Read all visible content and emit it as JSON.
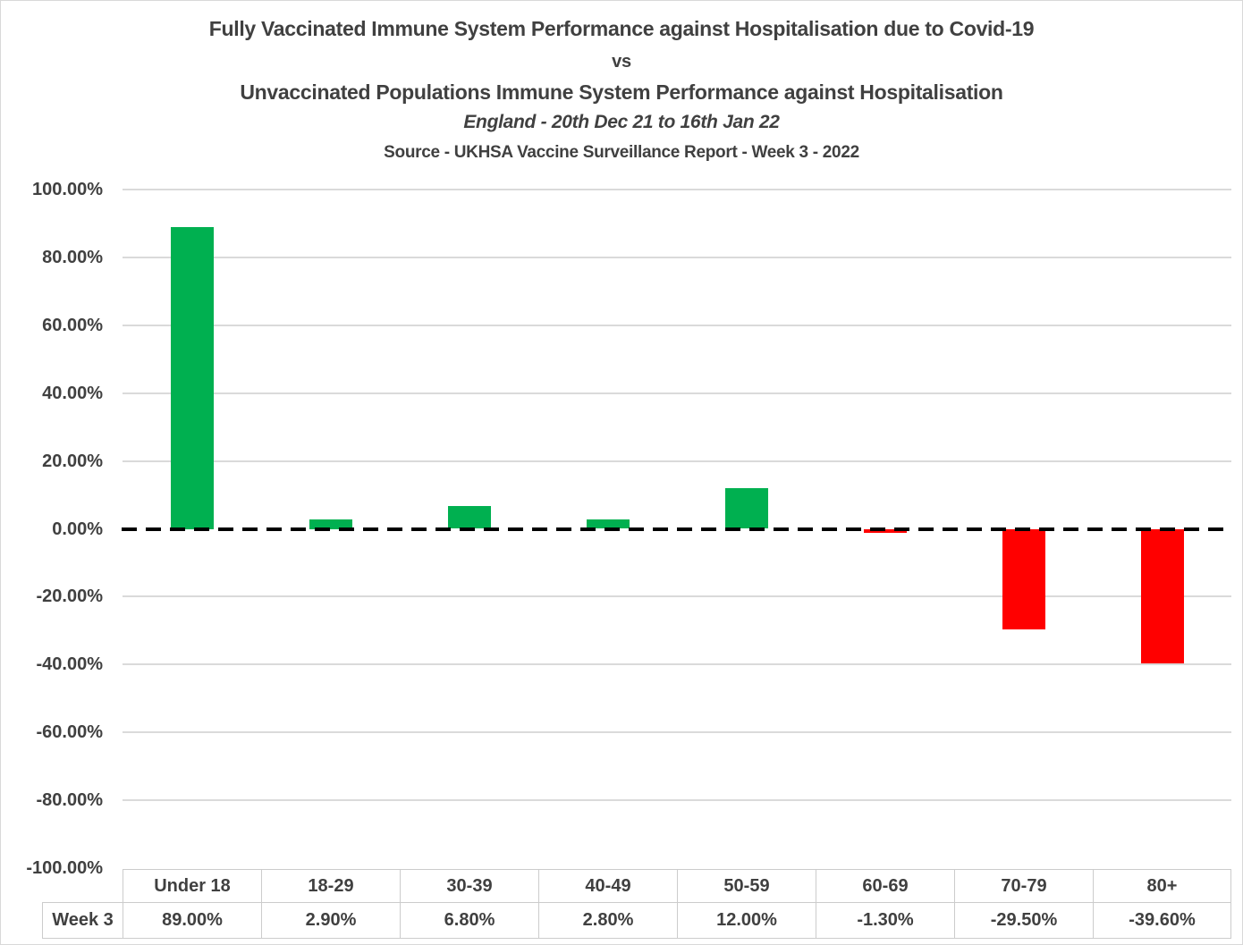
{
  "chart_data": {
    "type": "bar",
    "title_lines": [
      "Fully Vaccinated Immune System Performance against Hospitalisation due to Covid-19",
      "vs",
      "Unvaccinated Populations Immune System Performance against Hospitalisation",
      "England - 20th Dec 21 to 16th Jan 22",
      "Source - UKHSA Vaccine Surveillance Report - Week 3 - 2022"
    ],
    "categories": [
      "Under 18",
      "18-29",
      "30-39",
      "40-49",
      "50-59",
      "60-69",
      "70-79",
      "80+"
    ],
    "series": [
      {
        "name": "Week 3",
        "values": [
          89.0,
          2.9,
          6.8,
          2.8,
          12.0,
          -1.3,
          -29.5,
          -39.6
        ],
        "value_labels": [
          "89.00%",
          "2.90%",
          "6.80%",
          "2.80%",
          "12.00%",
          "-1.30%",
          "-29.50%",
          "-39.60%"
        ]
      }
    ],
    "y_ticks": [
      {
        "value": 100,
        "label": "100.00%"
      },
      {
        "value": 80,
        "label": "80.00%"
      },
      {
        "value": 60,
        "label": "60.00%"
      },
      {
        "value": 40,
        "label": "40.00%"
      },
      {
        "value": 20,
        "label": "20.00%"
      },
      {
        "value": 0,
        "label": "0.00%"
      },
      {
        "value": -20,
        "label": "-20.00%"
      },
      {
        "value": -40,
        "label": "-40.00%"
      },
      {
        "value": -60,
        "label": "-60.00%"
      },
      {
        "value": -80,
        "label": "-80.00%"
      },
      {
        "value": -100,
        "label": "-100.00%"
      }
    ],
    "ylim": [
      -100,
      100
    ],
    "grid": true,
    "zero_line_style": "dashed",
    "legend_position": "none",
    "colors": {
      "positive_bar": "#00B050",
      "negative_bar": "#FF0000",
      "text": "#404040",
      "gridline": "#DADADA",
      "zero_line": "#000000",
      "table_border": "#CCCCCC"
    }
  }
}
